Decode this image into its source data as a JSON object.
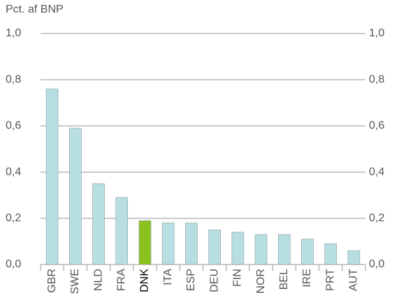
{
  "chart_data": {
    "type": "bar",
    "title": "Pct. af BNP",
    "categories": [
      "GBR",
      "SWE",
      "NLD",
      "FRA",
      "DNK",
      "ITA",
      "ESP",
      "DEU",
      "FIN",
      "NOR",
      "BEL",
      "IRE",
      "PRT",
      "AUT"
    ],
    "values": [
      0.76,
      0.59,
      0.35,
      0.29,
      0.19,
      0.18,
      0.18,
      0.15,
      0.14,
      0.13,
      0.13,
      0.11,
      0.09,
      0.06
    ],
    "colors": [
      "#b7dfe3",
      "#b7dfe3",
      "#b7dfe3",
      "#b7dfe3",
      "#8cc21e",
      "#b7dfe3",
      "#b7dfe3",
      "#b7dfe3",
      "#b7dfe3",
      "#b7dfe3",
      "#b7dfe3",
      "#b7dfe3",
      "#b7dfe3",
      "#b7dfe3"
    ],
    "ylim": [
      0,
      1
    ],
    "yticks": [
      {
        "value": 0,
        "label": "0,0"
      },
      {
        "value": 0.2,
        "label": "0,2"
      },
      {
        "value": 0.4,
        "label": "0,4"
      },
      {
        "value": 0.6,
        "label": "0,6"
      },
      {
        "value": 0.8,
        "label": "0,8"
      },
      {
        "value": 1,
        "label": "1,0"
      }
    ],
    "y2lim": [
      0,
      1
    ],
    "y2ticks": [
      {
        "value": 0,
        "label": "0,0"
      },
      {
        "value": 0.2,
        "label": "0,2"
      },
      {
        "value": 0.4,
        "label": "0,4"
      },
      {
        "value": 0.6,
        "label": "0,6"
      },
      {
        "value": 0.8,
        "label": "0,8"
      },
      {
        "value": 1,
        "label": "1,0"
      }
    ],
    "grid": true
  }
}
